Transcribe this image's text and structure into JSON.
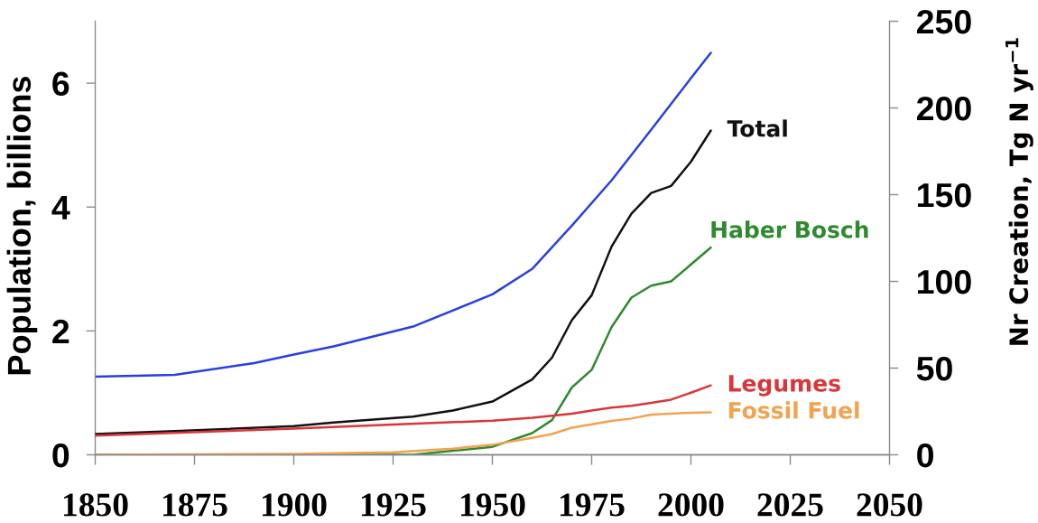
{
  "chart_data": {
    "type": "line",
    "ylabel": "Population, billions",
    "y2label": "Nr Creation, Tg N yr$^{−1}$",
    "xlim": [
      1850,
      2050
    ],
    "xticks": [
      1850,
      1875,
      1900,
      1925,
      1950,
      1975,
      2000,
      2025,
      2050
    ],
    "ylim": [
      0,
      7
    ],
    "yticks": [
      0,
      2,
      4,
      6
    ],
    "y2lim": [
      0,
      250
    ],
    "y2ticks": [
      0,
      50,
      100,
      150,
      200,
      250
    ],
    "line_style": "solid",
    "series": [
      {
        "color": "#2b3ee0",
        "axis": "y",
        "x": [
          1850,
          1870,
          1890,
          1900,
          1910,
          1930,
          1950,
          1960,
          1970,
          1980,
          1990,
          2000,
          2005
        ],
        "values": [
          1.26,
          1.29,
          1.48,
          1.62,
          1.75,
          2.07,
          2.59,
          3.0,
          3.7,
          4.43,
          5.25,
          6.08,
          6.49
        ]
      },
      {
        "name": "Total",
        "color": "#111111",
        "axis": "y2",
        "x": [
          1850,
          1870,
          1900,
          1910,
          1930,
          1940,
          1950,
          1960,
          1965,
          1970,
          1975,
          1980,
          1985,
          1990,
          1995,
          2000,
          2005
        ],
        "values": [
          12,
          13.7,
          16.5,
          18.6,
          22,
          25.5,
          30.7,
          43.4,
          56,
          77.6,
          92,
          120,
          139,
          151,
          155,
          169,
          187
        ]
      },
      {
        "name": "Haber Bosch",
        "color": "#2f8a2f",
        "axis": "y2",
        "x": [
          1850,
          1930,
          1940,
          1950,
          1960,
          1965,
          1970,
          1975,
          1980,
          1985,
          1990,
          1995,
          2005
        ],
        "values": [
          0,
          0,
          2.3,
          4.6,
          12.5,
          20,
          38.8,
          49,
          73.6,
          90.6,
          97.5,
          100,
          119.5
        ]
      },
      {
        "name": "Legumes",
        "color": "#d9363a",
        "axis": "y2",
        "x": [
          1850,
          1900,
          1925,
          1950,
          1960,
          1970,
          1975,
          1980,
          1985,
          1990,
          1995,
          2000,
          2005
        ],
        "values": [
          11.1,
          15.1,
          17.4,
          19.7,
          21.4,
          23.7,
          25.5,
          27.2,
          28.3,
          30,
          31.8,
          35.8,
          40
        ]
      },
      {
        "name": "Fossil Fuel",
        "color": "#f2a350",
        "axis": "y2",
        "x": [
          1850,
          1900,
          1925,
          1940,
          1950,
          1960,
          1965,
          1970,
          1980,
          1985,
          1990,
          2000,
          2005
        ],
        "values": [
          0,
          0.5,
          1.4,
          3.5,
          5.8,
          9.8,
          12,
          15.6,
          19.5,
          20.9,
          23.2,
          24.2,
          24.5
        ]
      }
    ]
  }
}
